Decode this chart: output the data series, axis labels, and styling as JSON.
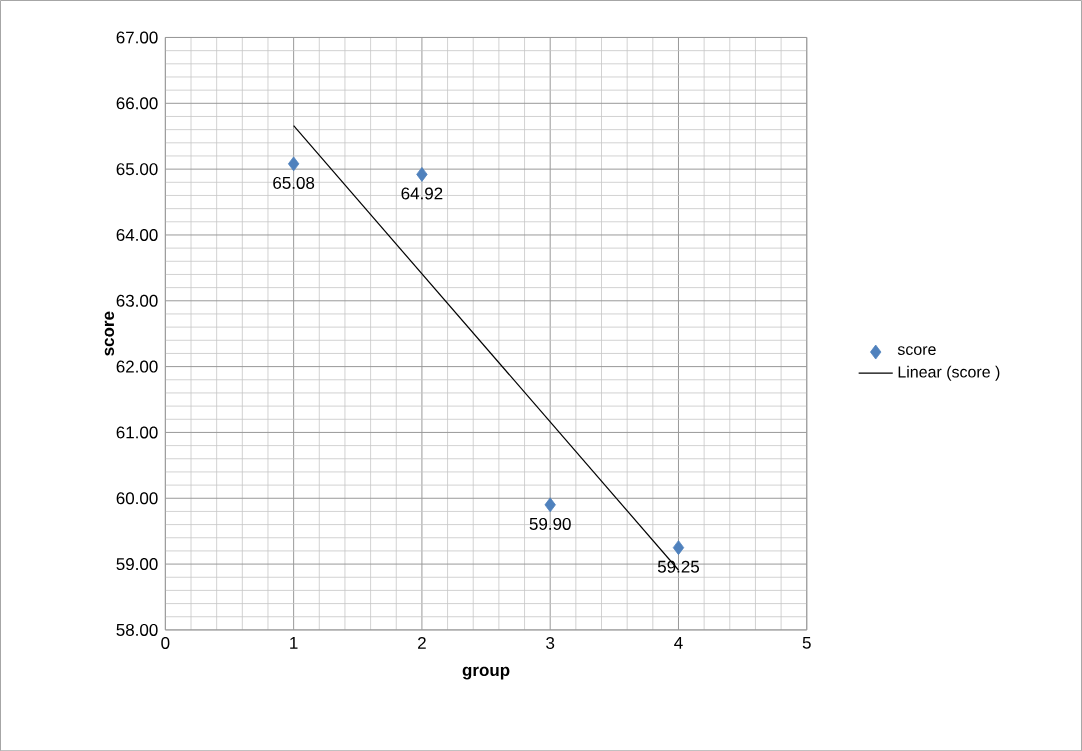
{
  "chart_data": {
    "type": "scatter",
    "xlabel": "group",
    "ylabel": "score",
    "series": [
      {
        "name": "score",
        "color": "#4f81bd",
        "marker": "diamond",
        "x": [
          1,
          2,
          3,
          4
        ],
        "values": [
          65.08,
          64.92,
          59.9,
          59.25
        ],
        "value_labels": [
          "65.08",
          "64.92",
          "59.90",
          "59.25"
        ]
      },
      {
        "name": "Linear (score )",
        "type": "line",
        "color": "#000000",
        "marker": "none",
        "line_style": "solid",
        "x": [
          1,
          4
        ],
        "values": [
          65.66,
          58.91
        ]
      }
    ],
    "xlim": [
      0,
      5
    ],
    "xticks": [
      0,
      1,
      2,
      3,
      4,
      5
    ],
    "ylim": [
      58,
      67
    ],
    "yticks": [
      {
        "value": 58,
        "label": "58.00"
      },
      {
        "value": 59,
        "label": "59.00"
      },
      {
        "value": 60,
        "label": "60.00"
      },
      {
        "value": 61,
        "label": "61.00"
      },
      {
        "value": 62,
        "label": "62.00"
      },
      {
        "value": 63,
        "label": "63.00"
      },
      {
        "value": 64,
        "label": "64.00"
      },
      {
        "value": 65,
        "label": "65.00"
      },
      {
        "value": 66,
        "label": "66.00"
      },
      {
        "value": 67,
        "label": "67.00"
      }
    ],
    "grid": true,
    "legend": "right"
  }
}
